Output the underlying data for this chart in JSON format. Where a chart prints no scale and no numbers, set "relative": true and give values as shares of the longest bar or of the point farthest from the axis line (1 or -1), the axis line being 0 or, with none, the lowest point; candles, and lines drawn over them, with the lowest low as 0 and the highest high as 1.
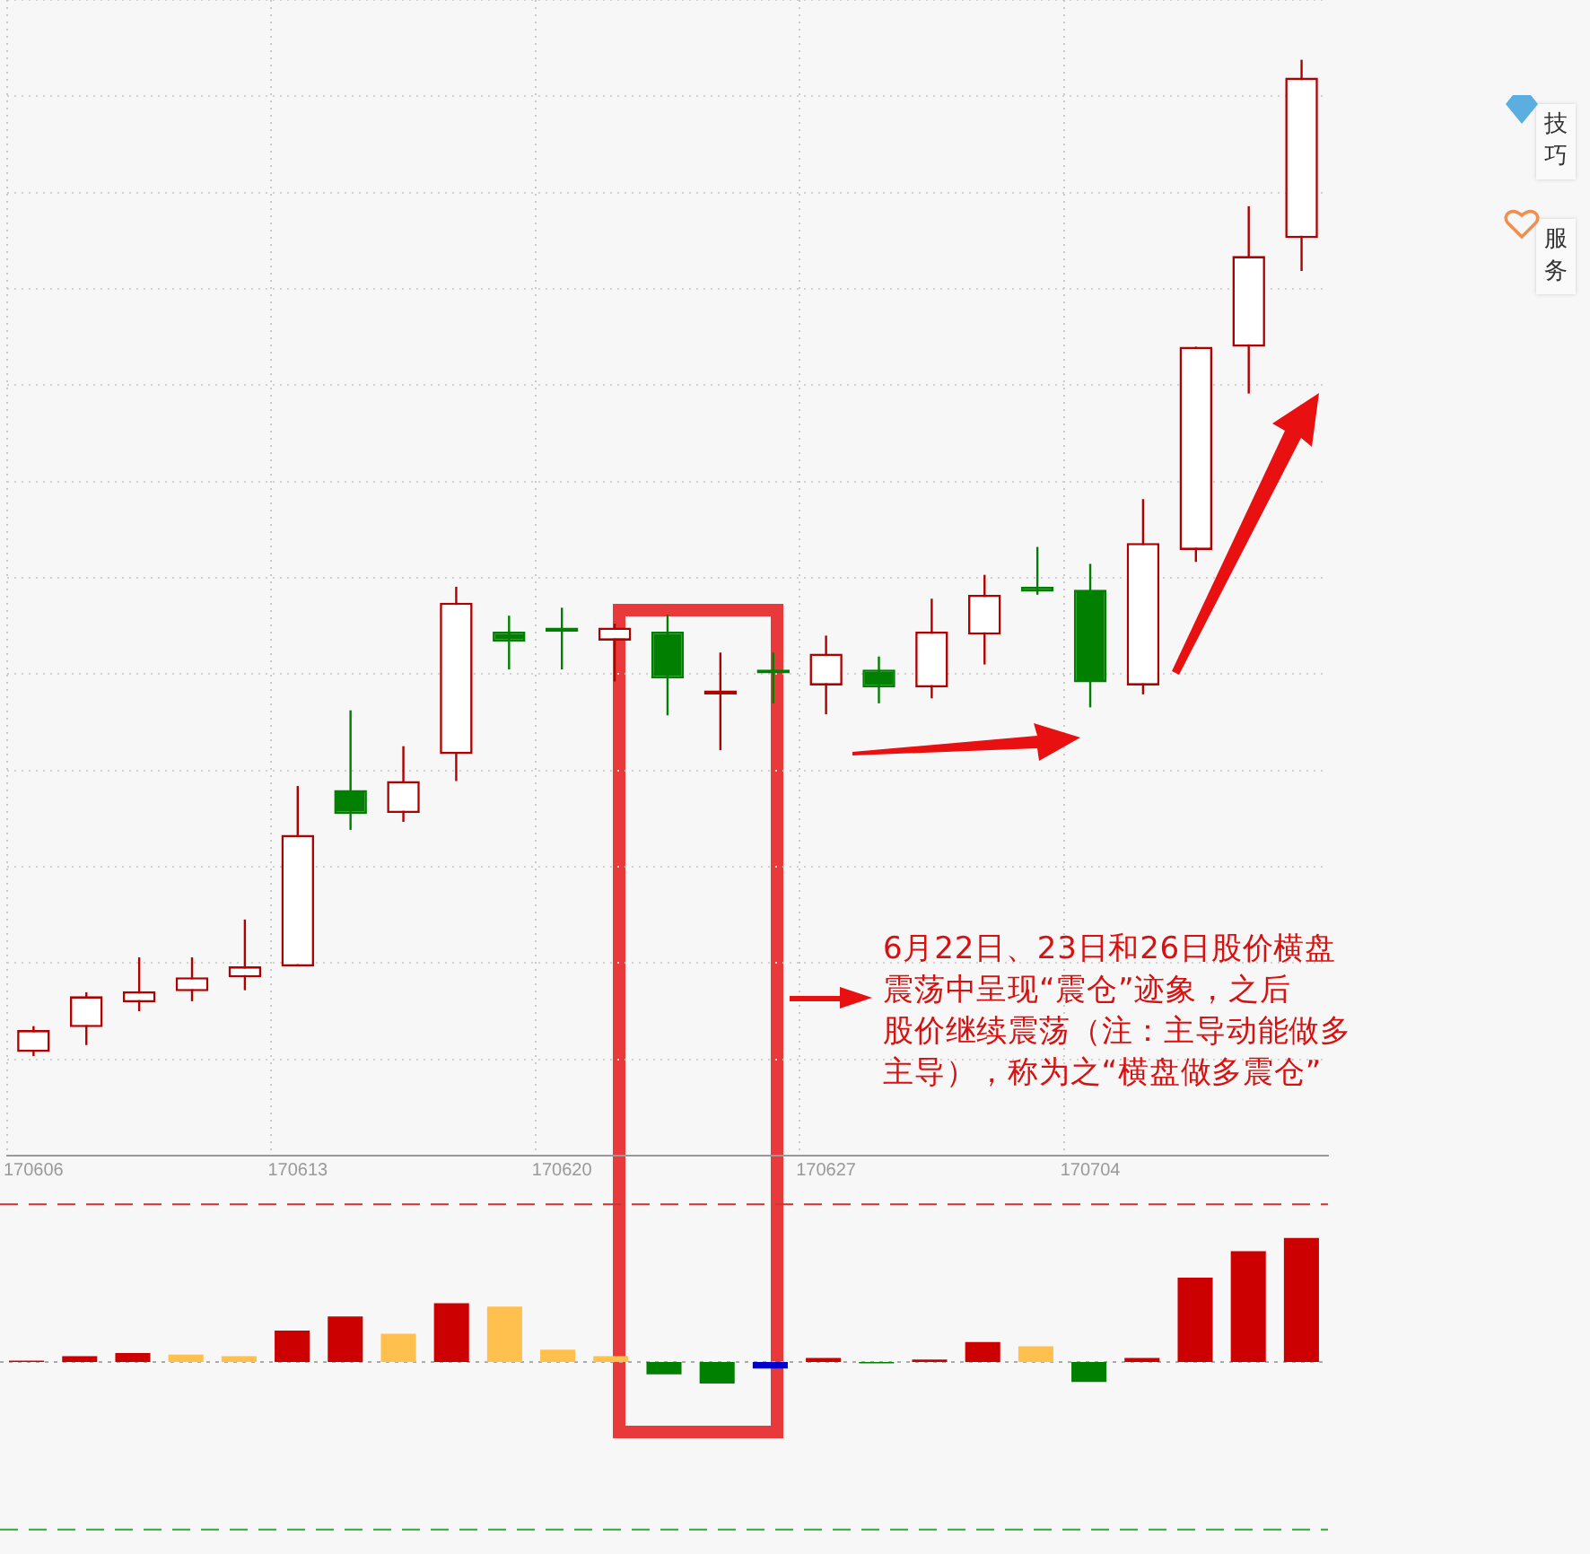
{
  "chart_data": [
    {
      "type": "candlestick",
      "relative": true,
      "grid": true,
      "categories": [
        "170606",
        null,
        null,
        null,
        null,
        "170613",
        null,
        null,
        null,
        null,
        "170620",
        null,
        null,
        null,
        null,
        "170627",
        null,
        null,
        null,
        null,
        "170704",
        null,
        null,
        null,
        null
      ],
      "ohlc": [
        [
          0.004,
          0.03,
          0,
          0.026
        ],
        [
          0.029,
          0.064,
          0.011,
          0.06
        ],
        [
          0.054,
          0.099,
          0.045,
          0.065
        ],
        [
          0.065,
          0.099,
          0.055,
          0.079
        ],
        [
          0.079,
          0.137,
          0.066,
          0.09
        ],
        [
          0.09,
          0.271,
          0.09,
          0.222
        ],
        [
          0.267,
          0.347,
          0.227,
          0.243
        ],
        [
          0.244,
          0.311,
          0.235,
          0.276
        ],
        [
          0.303,
          0.471,
          0.276,
          0.455
        ],
        [
          0.426,
          0.442,
          0.388,
          0.416
        ],
        [
          0.43,
          0.45,
          0.388,
          0.426
        ],
        [
          0.417,
          0.434,
          0.376,
          0.43
        ],
        [
          0.426,
          0.443,
          0.342,
          0.379
        ],
        [
          0.363,
          0.405,
          0.307,
          0.367
        ],
        [
          0.388,
          0.405,
          0.354,
          0.384
        ],
        [
          0.372,
          0.422,
          0.343,
          0.404
        ],
        [
          0.388,
          0.401,
          0.354,
          0.37
        ],
        [
          0.37,
          0.459,
          0.359,
          0.426
        ],
        [
          0.423,
          0.483,
          0.393,
          0.463
        ],
        [
          0.471,
          0.511,
          0.463,
          0.466
        ],
        [
          0.468,
          0.494,
          0.35,
          0.375
        ],
        [
          0.372,
          0.559,
          0.363,
          0.515
        ],
        [
          0.508,
          0.712,
          0.496,
          0.712
        ],
        [
          0.712,
          0.853,
          0.665,
          0.803
        ],
        [
          0.821,
          1,
          0.788,
          0.982
        ]
      ],
      "colors": [
        "#b00000",
        "#b00000",
        "#b00000",
        "#b00000",
        "#b00000",
        "#b00000",
        "#007f00",
        "#b00000",
        "#b00000",
        "#007f00",
        "#007f00",
        "#b00000",
        "#007f00",
        "#b00000",
        "#007f00",
        "#b00000",
        "#007f00",
        "#b00000",
        "#b00000",
        "#007f00",
        "#007f00",
        "#b00000",
        "#b00000",
        "#b00000",
        "#b00000"
      ],
      "annotations": [
        "6月22日、23日和26日股价横盘",
        "震荡中呈现“震仓”迹象，之后",
        "股价继续震荡（注：主导动能做多",
        "主导），称为之“横盘做多震仓”"
      ]
    },
    {
      "type": "bar",
      "relative": true,
      "tick_labels": false,
      "categories": [
        null,
        null,
        null,
        null,
        null,
        null,
        null,
        null,
        null,
        null,
        null,
        null,
        null,
        null,
        null,
        null,
        null,
        null,
        null,
        null,
        null,
        null,
        null,
        null,
        null
      ],
      "values": [
        0.01,
        0.047,
        0.073,
        0.06,
        0.047,
        0.253,
        0.367,
        0.227,
        0.473,
        0.447,
        0.1,
        0.047,
        -0.1,
        -0.173,
        -0.053,
        0.033,
        -0.01,
        0.02,
        0.16,
        0.127,
        -0.16,
        0.033,
        0.68,
        0.893,
        1
      ],
      "colors": [
        "#cc0000",
        "#cc0000",
        "#cc0000",
        "#ffc04d",
        "#ffc04d",
        "#cc0000",
        "#cc0000",
        "#ffc04d",
        "#cc0000",
        "#ffc04d",
        "#ffc04d",
        "#ffc04d",
        "#008000",
        "#008000",
        "#0000cc",
        "#cc0000",
        "#008000",
        "#cc0000",
        "#cc0000",
        "#ffc04d",
        "#008000",
        "#cc0000",
        "#cc0000",
        "#cc0000",
        "#cc0000"
      ],
      "ref_lines": [
        {
          "axis": "y",
          "value": 0,
          "color": "#aaaaaa",
          "line_style": "dotted"
        },
        {
          "axis": "y",
          "value": 1.27,
          "color": "#cc3333",
          "line_style": "dashed"
        },
        {
          "axis": "y",
          "value": -1.35,
          "color": "#33aa33",
          "line_style": "dashed"
        }
      ]
    },
    {
      "type": "other",
      "annotations": [
        "技巧",
        "服务"
      ]
    }
  ]
}
